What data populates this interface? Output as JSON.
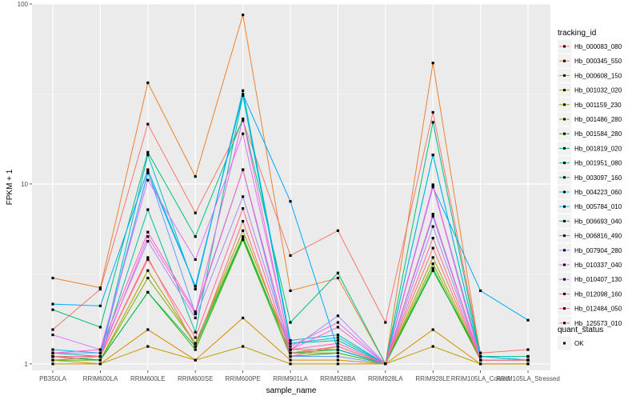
{
  "chart_data": {
    "type": "line",
    "xlabel": "sample_name",
    "ylabel": "FPKM + 1",
    "y_scale": "log10",
    "ylim": [
      0.92,
      100
    ],
    "y_ticks": [
      1,
      10,
      100
    ],
    "y_tick_labels": [
      "1",
      "10",
      "100"
    ],
    "grid": true,
    "legend_position": "right",
    "categories": [
      "PB350LA",
      "RRIM600LA",
      "RRIM600LE",
      "RRIM600SE",
      "RRIM600PE",
      "RRIM901LA",
      "RRIM928BA",
      "RRIM928LA",
      "RRIM928LE",
      "RRIM105LA_Control",
      "RRIM105LA_Stressed"
    ],
    "series": [
      {
        "name": "Hb_000083_080",
        "color": "#F8766D",
        "values": [
          1.55,
          2.6,
          21.5,
          6.9,
          22.5,
          4.0,
          5.5,
          1.7,
          25.0,
          1.15,
          1.2
        ]
      },
      {
        "name": "Hb_000345_550",
        "color": "#EA8331",
        "values": [
          3.0,
          2.65,
          36.5,
          11.0,
          87.0,
          2.55,
          3.0,
          1.0,
          47.0,
          1.1,
          1.1
        ]
      },
      {
        "name": "Hb_000608_150",
        "color": "#D89000",
        "values": [
          1.05,
          1.0,
          1.55,
          1.05,
          1.8,
          1.05,
          1.05,
          1.0,
          1.55,
          1.0,
          1.0
        ]
      },
      {
        "name": "Hb_001032_020",
        "color": "#C09B00",
        "values": [
          1.0,
          1.0,
          1.25,
          1.05,
          1.25,
          1.0,
          1.0,
          1.0,
          1.25,
          1.0,
          1.0
        ]
      },
      {
        "name": "Hb_001159_230",
        "color": "#A3A500",
        "values": [
          1.1,
          1.05,
          3.3,
          1.3,
          5.5,
          1.2,
          1.2,
          1.0,
          3.9,
          1.05,
          1.05
        ]
      },
      {
        "name": "Hb_001486_280",
        "color": "#7CAE00",
        "values": [
          1.1,
          1.05,
          3.0,
          1.3,
          5.1,
          1.15,
          1.15,
          1.0,
          3.6,
          1.05,
          1.05
        ]
      },
      {
        "name": "Hb_001584_280",
        "color": "#39B600",
        "values": [
          1.05,
          1.05,
          2.5,
          1.2,
          4.9,
          1.1,
          1.15,
          1.0,
          3.4,
          1.05,
          1.05
        ]
      },
      {
        "name": "Hb_001819_020",
        "color": "#00BB4E",
        "values": [
          1.1,
          1.05,
          2.5,
          1.25,
          5.0,
          1.15,
          1.2,
          1.0,
          3.3,
          1.1,
          1.1
        ]
      },
      {
        "name": "Hb_001951_080",
        "color": "#00BF7D",
        "values": [
          2.0,
          1.6,
          15.0,
          5.1,
          23.0,
          1.7,
          3.2,
          1.0,
          22.0,
          1.1,
          1.1
        ]
      },
      {
        "name": "Hb_003097_160",
        "color": "#00C1A3",
        "values": [
          1.1,
          1.1,
          7.2,
          1.5,
          31.0,
          1.3,
          1.35,
          1.0,
          14.5,
          1.1,
          1.1
        ]
      },
      {
        "name": "Hb_004223_060",
        "color": "#00BFC4",
        "values": [
          1.15,
          1.1,
          14.5,
          2.6,
          33.0,
          1.35,
          1.45,
          1.0,
          9.8,
          1.1,
          1.05
        ]
      },
      {
        "name": "Hb_005784_010",
        "color": "#00B8E7",
        "values": [
          1.2,
          1.15,
          11.5,
          2.7,
          31.5,
          1.3,
          1.4,
          1.0,
          14.5,
          1.1,
          1.05
        ]
      },
      {
        "name": "Hb_006693_040",
        "color": "#00A9FF",
        "values": [
          2.15,
          2.1,
          12.0,
          2.7,
          31.5,
          8.0,
          1.2,
          1.0,
          9.6,
          2.55,
          1.75
        ]
      },
      {
        "name": "Hb_006816_490",
        "color": "#619CFF",
        "values": [
          1.1,
          1.1,
          11.7,
          1.9,
          12.0,
          1.1,
          1.1,
          1.0,
          6.6,
          1.05,
          1.05
        ]
      },
      {
        "name": "Hb_007904_280",
        "color": "#AE87FF",
        "values": [
          1.15,
          1.15,
          4.8,
          1.8,
          8.5,
          1.2,
          1.85,
          1.0,
          5.8,
          1.05,
          1.05
        ]
      },
      {
        "name": "Hb_010337_040",
        "color": "#DB72FB",
        "values": [
          1.45,
          1.2,
          10.5,
          3.8,
          19.0,
          1.25,
          1.7,
          1.0,
          9.9,
          1.05,
          1.05
        ]
      },
      {
        "name": "Hb_010407_130",
        "color": "#F564E3",
        "values": [
          1.1,
          1.1,
          5.1,
          1.9,
          23.0,
          1.2,
          1.6,
          1.0,
          9.7,
          1.05,
          1.05
        ]
      },
      {
        "name": "Hb_012098_160",
        "color": "#FF61C3",
        "values": [
          1.15,
          1.2,
          5.4,
          1.95,
          12.0,
          1.2,
          1.3,
          1.0,
          6.8,
          1.05,
          1.05
        ]
      },
      {
        "name": "Hb_012484_050",
        "color": "#FF6C91",
        "values": [
          1.1,
          1.1,
          3.8,
          1.4,
          7.3,
          1.15,
          1.25,
          1.0,
          5.0,
          1.05,
          1.05
        ]
      },
      {
        "name": "Hb_125573_010",
        "color": "#F8766D",
        "values": [
          1.05,
          1.1,
          3.9,
          1.25,
          6.2,
          1.1,
          1.25,
          1.0,
          4.4,
          1.05,
          1.05
        ]
      }
    ],
    "legend": {
      "title": "tracking_id",
      "shape_title": "quant_status",
      "shape_items": [
        "OK"
      ]
    }
  }
}
